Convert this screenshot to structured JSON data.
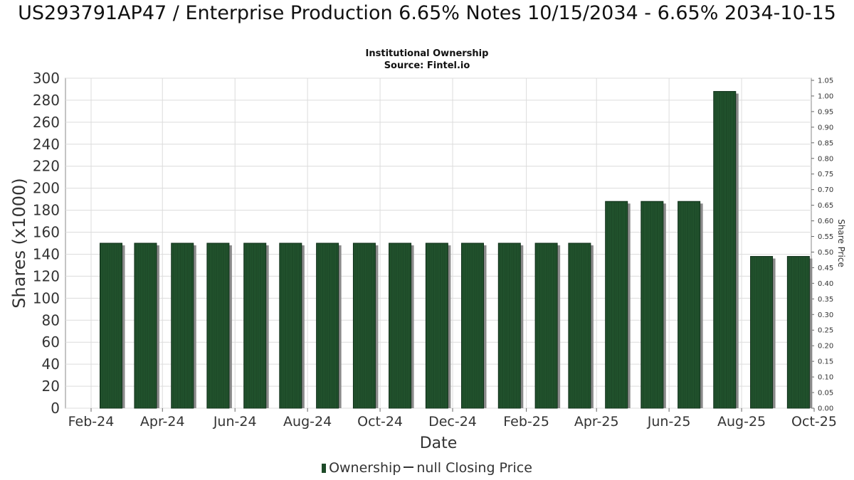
{
  "title": "US293791AP47 / Enterprise Production 6.65% Notes 10/15/2034 - 6.65% 2034-10-15",
  "subtitle_1": "Institutional Ownership",
  "subtitle_2": "Source: Fintel.io",
  "legend": {
    "ownership_label": "Ownership",
    "price_label": "null Closing Price"
  },
  "colors": {
    "bar": "#1d4a28",
    "bar_shadow": "#8a8a8a",
    "grid": "#dcdcdc",
    "axis": "#555555"
  },
  "chart_data": {
    "type": "bar",
    "title": "US293791AP47 / Enterprise Production 6.65% Notes 10/15/2034 - 6.65% 2034-10-15",
    "xlabel": "Date",
    "ylabel": "Shares (x1000)",
    "y2label": "Share Price",
    "ylim": [
      0,
      300
    ],
    "y2lim": [
      0,
      1.05
    ],
    "yticks": [
      "0",
      "20",
      "40",
      "60",
      "80",
      "100",
      "120",
      "140",
      "160",
      "180",
      "200",
      "220",
      "240",
      "260",
      "280",
      "300"
    ],
    "y2ticks": [
      "0.00",
      "0.05",
      "0.10",
      "0.15",
      "0.20",
      "0.25",
      "0.30",
      "0.35",
      "0.40",
      "0.45",
      "0.50",
      "0.55",
      "0.60",
      "0.65",
      "0.70",
      "0.75",
      "0.80",
      "0.85",
      "0.90",
      "0.95",
      "1.00",
      "1.05"
    ],
    "xticks": [
      "Feb-24",
      "Apr-24",
      "Jun-24",
      "Aug-24",
      "Oct-24",
      "Dec-24",
      "Feb-25",
      "Apr-25",
      "Jun-25",
      "Aug-25",
      "Oct-25"
    ],
    "x": [
      "2024-02-01",
      "2024-03-01",
      "2024-04-01",
      "2024-05-01",
      "2024-06-01",
      "2024-07-01",
      "2024-08-01",
      "2024-09-01",
      "2024-10-01",
      "2024-11-01",
      "2024-12-01",
      "2025-01-01",
      "2025-02-01",
      "2025-03-01",
      "2025-04-01",
      "2025-05-01",
      "2025-06-01",
      "2025-07-01",
      "2025-08-01",
      "2025-09-01"
    ],
    "series": [
      {
        "name": "Ownership",
        "values": [
          150,
          150,
          150,
          150,
          150,
          150,
          150,
          150,
          150,
          150,
          150,
          150,
          150,
          150,
          188,
          188,
          188,
          288,
          138,
          138
        ]
      }
    ],
    "grid": true,
    "legend_position": "bottom"
  }
}
